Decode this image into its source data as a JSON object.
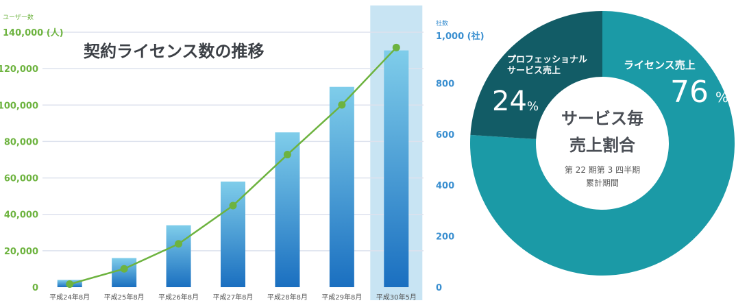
{
  "chart_data": [
    {
      "type": "bar+line",
      "title": "契約ライセンス数の推移",
      "categories": [
        "平成24年8月",
        "平成25年8月",
        "平成26年8月",
        "平成27年8月",
        "平成28年8月",
        "平成29年8月",
        "平成30年5月"
      ],
      "highlight_category": "平成30年5月",
      "left_axis": {
        "label": "ユーザー数",
        "unit_label": "140,000 (人)",
        "ticks": [
          "0",
          "20,000",
          "40,000",
          "60,000",
          "80,000",
          "100,000",
          "120,000"
        ],
        "range": [
          0,
          140000
        ],
        "color": "#6db33f"
      },
      "right_axis": {
        "label": "社数",
        "unit_label": "1,000 (社)",
        "ticks": [
          "0",
          "200",
          "400",
          "600",
          "800"
        ],
        "range": [
          0,
          1000
        ],
        "color": "#3a8fd0"
      },
      "series": [
        {
          "kind": "bar",
          "axis": "left",
          "values": [
            4000,
            16000,
            34000,
            58000,
            85000,
            110000,
            130000
          ]
        },
        {
          "kind": "line",
          "axis": "right",
          "values": [
            12,
            72,
            170,
            320,
            520,
            715,
            940
          ]
        }
      ],
      "grid": true
    },
    {
      "type": "pie",
      "title_lines": [
        "サービス毎",
        "売上割合"
      ],
      "subtitle_lines": [
        "第 22 期第 3 四半期",
        "累計期間"
      ],
      "slices": [
        {
          "label": "ライセンス売上",
          "value": 76,
          "value_text": "76",
          "unit": "%",
          "color": "#1b9aa6"
        },
        {
          "label_lines": [
            "プロフェッショナル",
            "サービス売上"
          ],
          "value": 24,
          "value_text": "24",
          "unit": "%",
          "color": "#125c66"
        }
      ]
    }
  ]
}
